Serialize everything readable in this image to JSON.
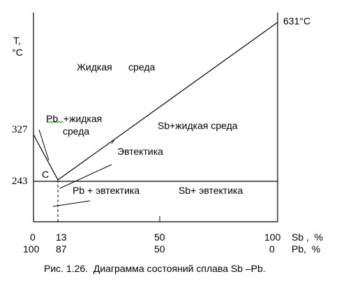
{
  "diagram": {
    "caption": "Рис. 1.26.  Диаграмма состояний сплава Sb –Pb.",
    "y_axis": {
      "label_t": "T,",
      "label_unit": "°C"
    },
    "temps": {
      "t327": "327",
      "t243": "243",
      "t631": "631°C"
    },
    "regions": {
      "liquid": "Жидкая      среда",
      "pb_liquid_1": "Pb  +жидкая",
      "pb_liquid_2": "среда",
      "sb_liquid": "Sb+жидкая среда",
      "eutectic": "Эвтектика",
      "pb_eutectic": "Pb + эвтектика",
      "sb_eutectic": "Sb+ эвтектика",
      "point_c": "C"
    },
    "sb_row": {
      "v0": "0",
      "v13": "13",
      "v50": "50",
      "v100": "100",
      "label": "Sb ,  %"
    },
    "pb_row": {
      "v100": "100",
      "v87": "87",
      "v50": "50",
      "v0": "0",
      "label": "Pb,  %"
    }
  }
}
